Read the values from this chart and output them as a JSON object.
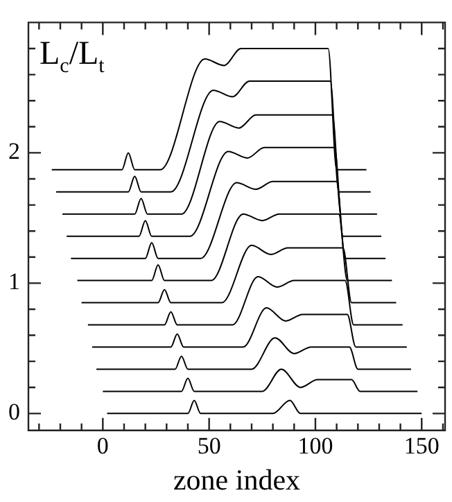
{
  "chart_data": {
    "type": "line",
    "xlabel": "zone index",
    "ylabel": "L$_{c}$/L$_{t}$",
    "xlim": [
      -35,
      161
    ],
    "ylim": [
      -0.13,
      3.0
    ],
    "xticks": [
      {
        "value": -30,
        "label": null
      },
      {
        "value": -20,
        "label": null
      },
      {
        "value": -10,
        "label": null
      },
      0,
      {
        "value": 10,
        "label": null
      },
      {
        "value": 20,
        "label": null
      },
      {
        "value": 30,
        "label": null
      },
      {
        "value": 40,
        "label": null
      },
      50,
      {
        "value": 60,
        "label": null
      },
      {
        "value": 70,
        "label": null
      },
      {
        "value": 80,
        "label": null
      },
      {
        "value": 90,
        "label": null
      },
      100,
      {
        "value": 110,
        "label": null
      },
      {
        "value": 120,
        "label": null
      },
      {
        "value": 130,
        "label": null
      },
      {
        "value": 140,
        "label": null
      },
      150,
      {
        "value": 160,
        "label": null
      }
    ],
    "yticks": [
      0,
      {
        "value": 0.2,
        "label": null
      },
      {
        "value": 0.4,
        "label": null
      },
      {
        "value": 0.6,
        "label": null
      },
      {
        "value": 0.8,
        "label": null
      },
      1,
      {
        "value": 1.2,
        "label": null
      },
      {
        "value": 1.4,
        "label": null
      },
      {
        "value": 1.6,
        "label": null
      },
      {
        "value": 1.8,
        "label": null
      },
      2,
      {
        "value": 2.2,
        "label": null
      },
      {
        "value": 2.4,
        "label": null
      },
      {
        "value": 2.6,
        "label": null
      },
      {
        "value": 2.8,
        "label": null
      }
    ],
    "grid": false,
    "legend": false,
    "marker": "none",
    "line_style": "solid",
    "series": [
      {
        "color": "#000000",
        "x": [
          2,
          40,
          43,
          46,
          80,
          88,
          93,
          150
        ],
        "values": [
          0,
          0,
          0.1,
          0,
          0,
          0.1,
          0,
          0
        ]
      },
      {
        "color": "#000000",
        "x": [
          0,
          37,
          40,
          43,
          75,
          84,
          93,
          101,
          117,
          121,
          148
        ],
        "values": [
          0.17,
          0.17,
          0.27,
          0.17,
          0.17,
          0.34,
          0.2,
          0.26,
          0.26,
          0.17,
          0.17
        ]
      },
      {
        "color": "#000000",
        "x": [
          -3,
          34,
          37,
          40,
          70,
          81,
          90,
          98,
          116,
          120,
          145
        ],
        "values": [
          0.34,
          0.34,
          0.44,
          0.34,
          0.34,
          0.58,
          0.46,
          0.51,
          0.51,
          0.34,
          0.34
        ]
      },
      {
        "color": "#000000",
        "x": [
          -5,
          32,
          35,
          38,
          66,
          77,
          86,
          94,
          115,
          119,
          143
        ],
        "values": [
          0.51,
          0.51,
          0.61,
          0.51,
          0.51,
          0.81,
          0.71,
          0.76,
          0.76,
          0.51,
          0.51
        ]
      },
      {
        "color": "#000000",
        "x": [
          -7,
          29,
          32,
          35,
          61,
          73,
          82,
          90,
          114,
          118,
          141
        ],
        "values": [
          0.68,
          0.68,
          0.78,
          0.68,
          0.68,
          1.05,
          0.97,
          1.02,
          1.02,
          0.68,
          0.68
        ]
      },
      {
        "color": "#000000",
        "x": [
          -10,
          26,
          29,
          32,
          56,
          70,
          79,
          87,
          113,
          117,
          138
        ],
        "values": [
          0.85,
          0.85,
          0.95,
          0.85,
          0.85,
          1.29,
          1.22,
          1.27,
          1.27,
          0.85,
          0.85
        ]
      },
      {
        "color": "#000000",
        "x": [
          -12,
          23,
          26,
          29,
          51,
          66,
          75,
          83,
          111,
          115,
          136
        ],
        "values": [
          1.02,
          1.02,
          1.14,
          1.02,
          1.02,
          1.53,
          1.48,
          1.53,
          1.53,
          1.02,
          1.02
        ]
      },
      {
        "color": "#000000",
        "x": [
          -15,
          20,
          23,
          26,
          46,
          63,
          72,
          80,
          110,
          114,
          133
        ],
        "values": [
          1.19,
          1.19,
          1.31,
          1.19,
          1.19,
          1.77,
          1.72,
          1.78,
          1.78,
          1.19,
          1.19
        ]
      },
      {
        "color": "#000000",
        "x": [
          -17,
          17,
          20,
          23,
          41,
          59,
          68,
          76,
          109,
          113,
          131
        ],
        "values": [
          1.36,
          1.36,
          1.48,
          1.36,
          1.36,
          2.01,
          1.96,
          2.04,
          2.04,
          1.36,
          1.36
        ]
      },
      {
        "color": "#000000",
        "x": [
          -19,
          15,
          18,
          21,
          37,
          55,
          64,
          72,
          108,
          112,
          129
        ],
        "values": [
          1.53,
          1.53,
          1.65,
          1.53,
          1.53,
          2.24,
          2.19,
          2.29,
          2.29,
          1.53,
          1.53
        ]
      },
      {
        "color": "#000000",
        "x": [
          -22,
          12,
          15,
          18,
          32,
          52,
          61,
          69,
          107,
          111,
          126
        ],
        "values": [
          1.7,
          1.7,
          1.82,
          1.7,
          1.7,
          2.48,
          2.43,
          2.55,
          2.55,
          1.7,
          1.7
        ]
      },
      {
        "color": "#000000",
        "x": [
          -24,
          9,
          12,
          15,
          27,
          48,
          57,
          65,
          106,
          110,
          124
        ],
        "values": [
          1.87,
          1.87,
          2.0,
          1.87,
          1.87,
          2.72,
          2.67,
          2.8,
          2.8,
          1.87,
          1.87
        ]
      }
    ]
  }
}
